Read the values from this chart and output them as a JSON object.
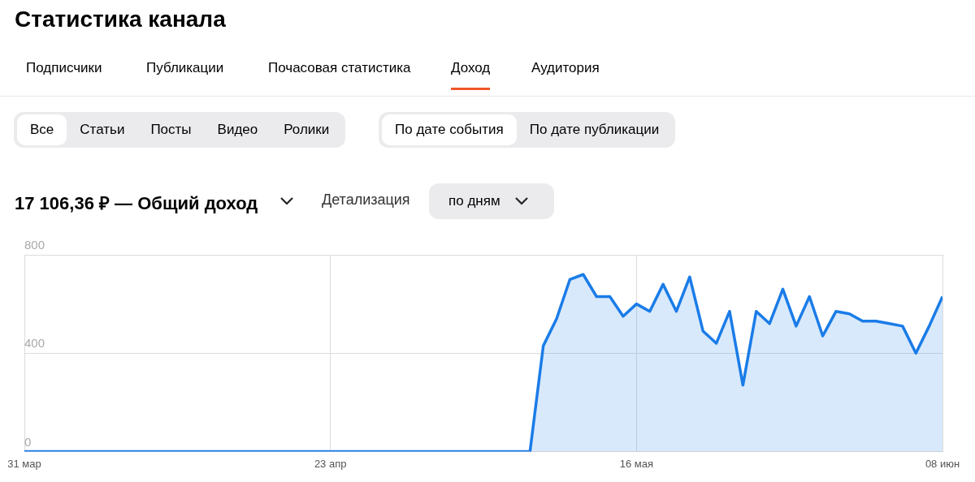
{
  "chart_data": {
    "type": "area",
    "title": "Статистика канала",
    "subtitle": "17 106,36 ₽ — Общий доход",
    "annotations": [
      "Подписчики",
      "Публикации",
      "Почасовая статистика",
      "Доход",
      "Аудитория",
      "Все",
      "Статьи",
      "Посты",
      "Видео",
      "Ролики",
      "По дате события",
      "По дате публикации",
      "Детализация",
      "по дням"
    ],
    "series": [
      {
        "color": "#1a7ce8",
        "x": [
          "--03-31",
          "--05-08",
          "--05-09",
          "--05-10",
          "--05-11",
          "--05-12",
          "--05-13",
          "--05-14",
          "--05-15",
          "--05-16",
          "--05-17",
          "--05-18",
          "--05-19",
          "--05-20",
          "--05-21",
          "--05-22",
          "--05-23",
          "--05-24",
          "--05-25",
          "--05-26",
          "--05-27",
          "--05-28",
          "--05-29",
          "--05-30",
          "--05-31",
          "--06-01",
          "--06-02",
          "--06-03",
          "--06-04",
          "--06-05",
          "--06-06",
          "--06-07",
          "--06-08"
        ],
        "values": [
          0,
          0,
          430,
          540,
          700,
          720,
          630,
          630,
          550,
          600,
          570,
          680,
          570,
          710,
          490,
          440,
          570,
          270,
          570,
          520,
          660,
          510,
          630,
          470,
          570,
          560,
          530,
          530,
          520,
          510,
          400,
          510,
          630
        ]
      }
    ],
    "xlim": [
      "--03-31",
      "--06-08"
    ],
    "xticks": [
      {
        "value": "--03-31",
        "label": "31 мар"
      },
      {
        "value": "--04-23",
        "label": "23 апр"
      },
      {
        "value": "--05-16",
        "label": "16 мая"
      },
      {
        "value": "--06-08",
        "label": "08 июн"
      }
    ],
    "ylim": [
      0,
      800
    ],
    "yticks": [
      0,
      400,
      800
    ],
    "grid": true,
    "legend": false
  }
}
